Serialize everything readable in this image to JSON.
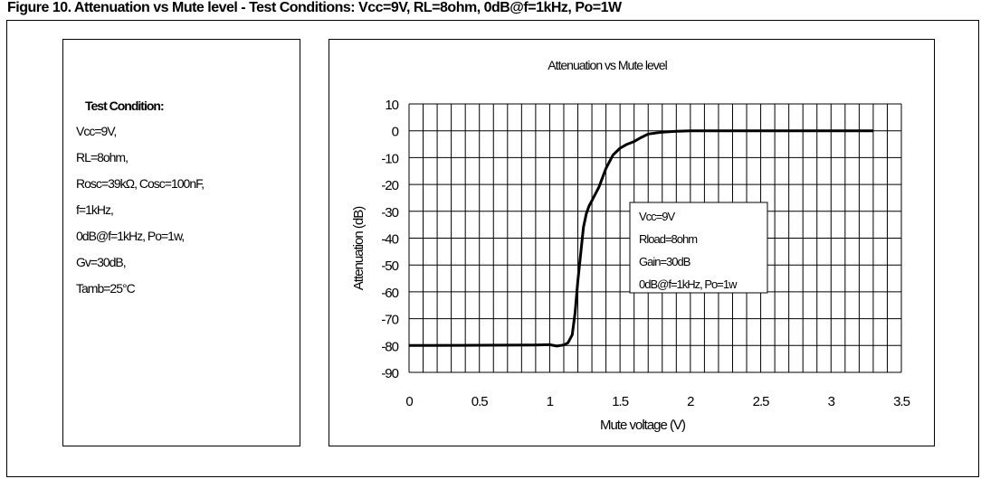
{
  "header": {
    "text": "Figure 10. Attenuation vs Mute level - Test Conditions: Vcc=9V, RL=8ohm, 0dB@f=1kHz, Po=1W"
  },
  "conditions": {
    "title": "Test Condition:",
    "lines": [
      "Vcc=9V,",
      "RL=8ohm,",
      "Rosc=39kΩ, Cosc=100nF,",
      "f=1kHz,",
      "0dB@f=1kHz, Po=1w,",
      "Gv=30dB,",
      "Tamb=25°C"
    ]
  },
  "chart_data": {
    "type": "line",
    "title": "Attenuation vs Mute level",
    "xlabel": "Mute voltage (V)",
    "ylabel": "Attenuation (dB)",
    "xlim": [
      0,
      3.5
    ],
    "ylim": [
      -90,
      10
    ],
    "x_ticks": [
      "0",
      "0.5",
      "1",
      "1.5",
      "2",
      "2.5",
      "3",
      "3.5"
    ],
    "y_ticks": [
      "10",
      "0",
      "-10",
      "-20",
      "-30",
      "-40",
      "-50",
      "-60",
      "-70",
      "-80",
      "-90"
    ],
    "grid": true,
    "legend_box": [
      "Vcc=9V",
      "Rload=8ohm",
      "Gain=30dB",
      "0dB@f=1kHz, Po=1w"
    ],
    "series": [
      {
        "x": [
          0,
          0.5,
          0.9,
          1.0,
          1.05,
          1.1,
          1.13,
          1.16,
          1.18,
          1.2,
          1.22,
          1.24,
          1.26,
          1.28,
          1.3,
          1.35,
          1.4,
          1.45,
          1.5,
          1.55,
          1.6,
          1.65,
          1.7,
          1.8,
          1.9,
          2.0,
          2.5,
          3.0,
          3.3
        ],
        "y": [
          -80,
          -79.9,
          -79.8,
          -79.7,
          -80.2,
          -79.8,
          -79,
          -76,
          -68,
          -56,
          -46,
          -36,
          -31,
          -28,
          -26,
          -21,
          -14,
          -9,
          -6.5,
          -5,
          -4,
          -2.5,
          -1.2,
          -0.5,
          -0.2,
          0,
          0,
          0,
          0
        ]
      }
    ],
    "line_color": "#000000"
  }
}
